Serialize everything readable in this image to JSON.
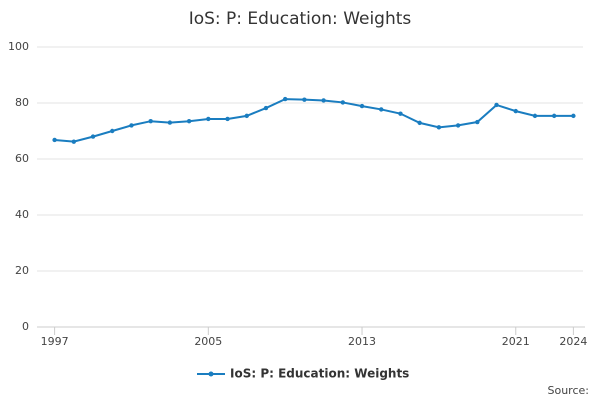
{
  "chart_data": {
    "type": "line",
    "title": "IoS: P: Education: Weights",
    "x": [
      1997,
      1998,
      1999,
      2000,
      2001,
      2002,
      2003,
      2004,
      2005,
      2006,
      2007,
      2008,
      2009,
      2010,
      2011,
      2012,
      2013,
      2014,
      2015,
      2016,
      2017,
      2018,
      2019,
      2020,
      2021,
      2022,
      2023,
      2024
    ],
    "series": [
      {
        "name": "IoS: P: Education: Weights",
        "color": "#1a7dc0",
        "values": [
          66.8,
          66.2,
          68,
          70,
          72,
          73.5,
          73,
          73.5,
          74.3,
          74.3,
          75.4,
          78.2,
          81.4,
          81.2,
          80.9,
          80.2,
          78.9,
          77.7,
          76.2,
          72.9,
          71.3,
          72,
          73.2,
          79.3,
          77.1,
          75.4,
          75.4,
          75.4
        ]
      }
    ],
    "xlim": [
      1996.5,
      2024.5
    ],
    "xticks": [
      1997,
      2005,
      2013,
      2021,
      2024
    ],
    "ylim": [
      0,
      100
    ],
    "yticks": [
      0,
      20,
      40,
      60,
      80,
      100
    ],
    "grid": true,
    "source": "Source:"
  }
}
